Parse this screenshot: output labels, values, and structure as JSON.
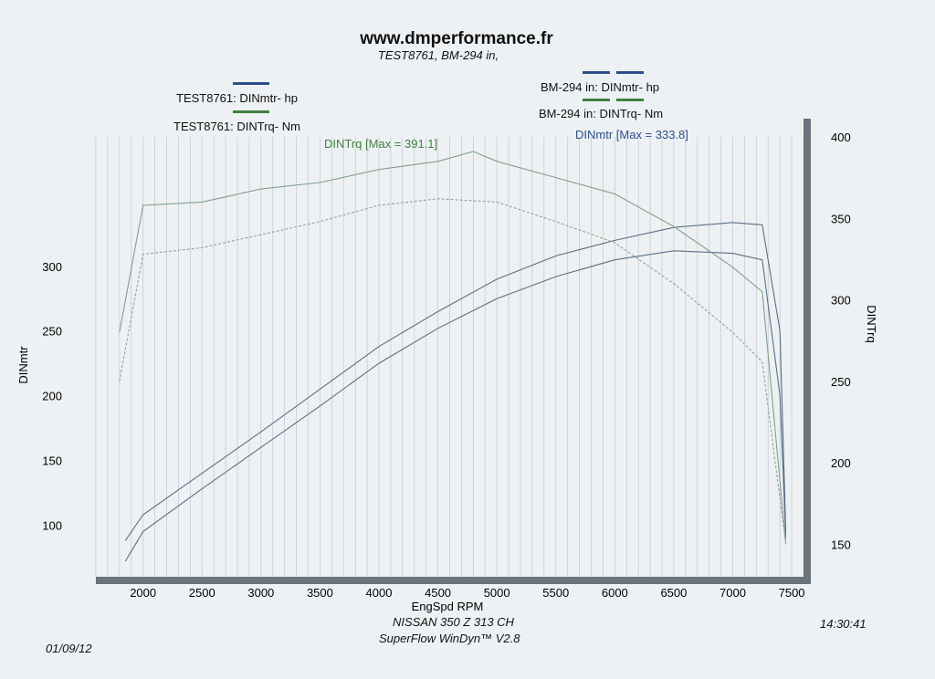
{
  "header": {
    "site": "www.dmperformance.fr",
    "subtitle": "TEST8761, BM-294 in,"
  },
  "legend": {
    "left": [
      {
        "label": "TEST8761: DINmtr-  hp",
        "color": "#2a4f8a"
      },
      {
        "label": "TEST8761: DINTrq-  Nm",
        "color": "#3f7f3f"
      }
    ],
    "right": [
      {
        "label": "BM-294 in: DINmtr-  hp",
        "color": "#2a4f8a"
      },
      {
        "label": "BM-294 in: DINTrq-  Nm",
        "color": "#3f7f3f"
      }
    ]
  },
  "annotations": {
    "torque_max": "DINTrq [Max = 391.1]",
    "power_max": "DINmtr [Max = 333.8]"
  },
  "footer": {
    "car": "NISSAN 350 Z 313 CH",
    "software": "SuperFlow WinDyn™ V2.8",
    "time": "14:30:41",
    "date": "01/09/12"
  },
  "chart_data": {
    "type": "line",
    "xlabel": "EngSpd  RPM",
    "ylabel_left": "DINmtr",
    "ylabel_right": "DINTrq",
    "xlim": [
      1600,
      7600
    ],
    "ylim_left": [
      60,
      400
    ],
    "ylim_right": [
      130,
      400
    ],
    "xticks": [
      2000,
      2500,
      3000,
      3500,
      4000,
      4500,
      5000,
      5500,
      6000,
      6500,
      7000,
      7500
    ],
    "yticks_left": [
      100,
      150,
      200,
      250,
      300
    ],
    "yticks_right": [
      150,
      200,
      250,
      300,
      350,
      400
    ],
    "grid": true,
    "series": [
      {
        "name": "TEST8761: DINmtr-  hp",
        "axis": "left",
        "color": "#5a6f86",
        "dash": false,
        "x": [
          1850,
          2000,
          2500,
          3000,
          3500,
          4000,
          4500,
          5000,
          5500,
          6000,
          6500,
          7000,
          7250,
          7400,
          7450
        ],
        "y": [
          88,
          108,
          140,
          172,
          205,
          238,
          265,
          290,
          308,
          320,
          330,
          333.8,
          332,
          250,
          95
        ]
      },
      {
        "name": "BM-294 in: DINmtr-  hp",
        "axis": "left",
        "color": "#5a6f86",
        "dash": false,
        "x": [
          1850,
          2000,
          2500,
          3000,
          3500,
          4000,
          4500,
          5000,
          5500,
          6000,
          6500,
          7000,
          7250,
          7400,
          7450
        ],
        "y": [
          72,
          95,
          128,
          160,
          192,
          225,
          252,
          275,
          292,
          305,
          312,
          310,
          305,
          200,
          90
        ]
      },
      {
        "name": "TEST8761: DINTrq-  Nm",
        "axis": "right",
        "color": "#7fa08a",
        "dash": false,
        "x": [
          1800,
          2000,
          2500,
          3000,
          3500,
          4000,
          4500,
          4800,
          5000,
          5500,
          6000,
          6500,
          7000,
          7250,
          7450
        ],
        "y": [
          280,
          358,
          360,
          368,
          372,
          380,
          385,
          391.1,
          385,
          375,
          365,
          345,
          320,
          305,
          150
        ]
      },
      {
        "name": "BM-294 in: DINTrq-  Nm",
        "axis": "right",
        "color": "#8fa595",
        "dash": true,
        "x": [
          1800,
          2000,
          2500,
          3000,
          3500,
          4000,
          4500,
          5000,
          5500,
          6000,
          6500,
          7000,
          7250,
          7450
        ],
        "y": [
          250,
          328,
          332,
          340,
          348,
          358,
          362,
          360,
          348,
          335,
          310,
          280,
          262,
          150
        ]
      }
    ]
  }
}
